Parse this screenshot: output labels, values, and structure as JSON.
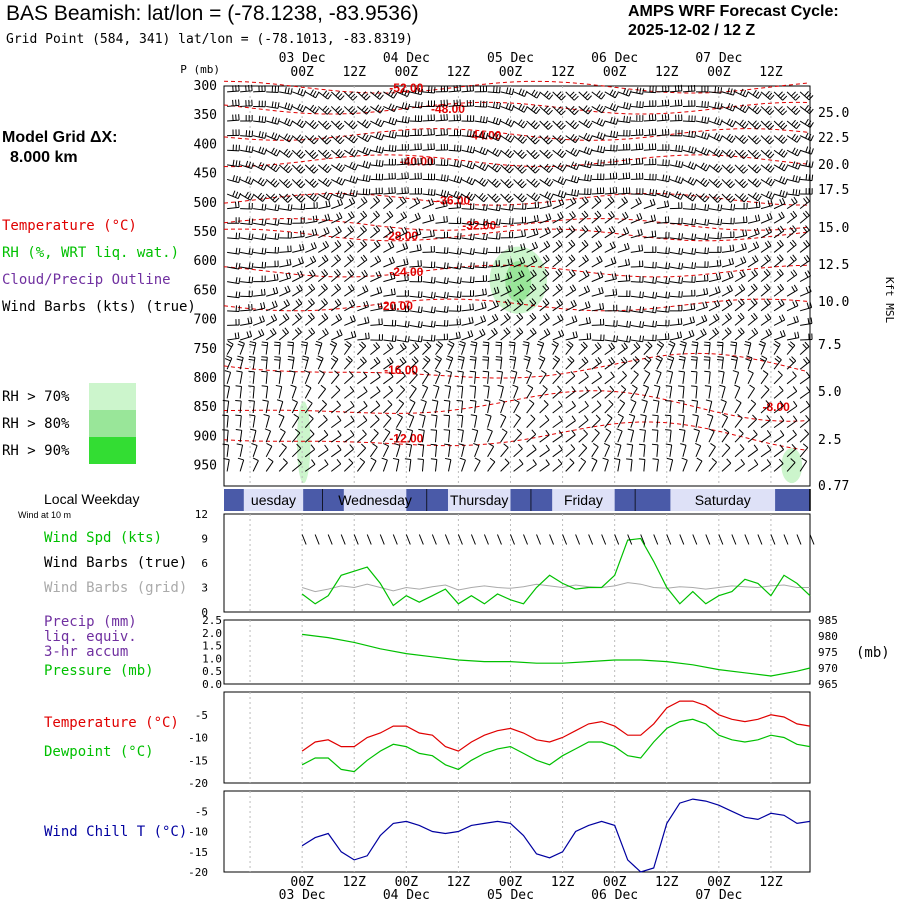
{
  "header": {
    "title": "BAS Beamish:  lat/lon = (-78.1238, -83.9536)",
    "subtitle": "Grid Point (584, 341) lat/lon = (-78.1013, -83.8319)",
    "cycle_label": "AMPS WRF Forecast Cycle:",
    "cycle_value": "2025-12-02 / 12  Z"
  },
  "left_labels": {
    "grid_label": "Model Grid ΔX:",
    "grid_value": "8.000 km",
    "temperature": "Temperature (°C)",
    "rh": "RH (%, WRT liq. wat.)",
    "cloud": "Cloud/Precip Outline",
    "barbs": "Wind Barbs (kts) (true)",
    "rh70": "RH > 70%",
    "rh80": "RH > 80%",
    "rh90": "RH > 90%",
    "local_weekday": "Local Weekday",
    "wind10m": "Wind at 10 m",
    "wind_spd": "Wind Spd (kts)",
    "wind_barbs_true": "Wind Barbs (true)",
    "wind_barbs_grid": "Wind Barbs (grid)",
    "precip": "Precip (mm)",
    "liq_equiv": "liq. equiv.",
    "accum": "3-hr accum",
    "pressure": "Pressure (mb)",
    "temp2": "Temperature (°C)",
    "dewpoint": "Dewpoint (°C)",
    "windchill": "Wind Chill T (°C)",
    "p_axis_label": "P (mb)",
    "kft_label": "Kft MSL",
    "mb_label": "(mb)"
  },
  "colors": {
    "temperature": "#e00000",
    "green": "#00c000",
    "purple": "#7030a0",
    "gray": "#aaaaaa",
    "blue": "#0000a0",
    "rh70": "#ccf5cc",
    "rh80": "#99e699",
    "rh90": "#33dd33"
  },
  "time_axis": {
    "ticks": [
      "00Z",
      "12Z",
      "00Z",
      "12Z",
      "00Z",
      "12Z",
      "00Z",
      "12Z",
      "00Z",
      "12Z"
    ],
    "dates": [
      "03 Dec",
      "04 Dec",
      "05 Dec",
      "06 Dec",
      "07 Dec"
    ],
    "weekdays": [
      "uesday",
      "Wednesday",
      "Thursday",
      "Friday",
      "Saturday"
    ]
  },
  "chart_data": [
    {
      "type": "cross-section",
      "name": "upper-air",
      "y_pressure_ticks": [
        300,
        350,
        400,
        450,
        500,
        550,
        600,
        650,
        700,
        750,
        800,
        850,
        900,
        950
      ],
      "y_height_ticks": [
        "25.0",
        "22.5",
        "20.0",
        "17.5",
        "15.0",
        "12.5",
        "10.0",
        "7.5",
        "5.0",
        "2.5",
        "0.77"
      ],
      "isotherm_labels": [
        {
          "label": "-52.00",
          "p": 302,
          "t": 1.0
        },
        {
          "label": "-48.00",
          "p": 338,
          "t": 1.4
        },
        {
          "label": "-44.00",
          "p": 383,
          "t": 1.75
        },
        {
          "label": "-40.00",
          "p": 428,
          "t": 1.1
        },
        {
          "label": "-36.00",
          "p": 494,
          "t": 1.45
        },
        {
          "label": "-32.00",
          "p": 537,
          "t": 1.7
        },
        {
          "label": "-28.00",
          "p": 555,
          "t": 0.95
        },
        {
          "label": "-24.00",
          "p": 617,
          "t": 1.0
        },
        {
          "label": "-20.00",
          "p": 675,
          "t": 0.9
        },
        {
          "label": "-16.00",
          "p": 785,
          "t": 0.95
        },
        {
          "label": "-12.00",
          "p": 902,
          "t": 1.0
        },
        {
          "label": "-8.00",
          "p": 848,
          "t": 4.55
        }
      ],
      "isotherm_levels": [
        -52,
        -48,
        -44,
        -40,
        -36,
        -32,
        -28,
        -24,
        -20,
        -16,
        -12,
        -8
      ],
      "rh_areas": [
        {
          "level": "rh70",
          "t0": -0.05,
          "t1": 0.08,
          "p0": 840,
          "p1": 980
        },
        {
          "level": "rh70",
          "t0": 1.8,
          "t1": 2.35,
          "p0": 575,
          "p1": 690
        },
        {
          "level": "rh80",
          "t0": 1.95,
          "t1": 2.2,
          "p0": 600,
          "p1": 670
        },
        {
          "level": "rh70",
          "t0": 4.6,
          "t1": 4.8,
          "p0": 920,
          "p1": 980
        }
      ]
    },
    {
      "type": "line",
      "name": "wind",
      "ylim": [
        0,
        12
      ],
      "yticks": [
        0,
        3,
        6,
        9,
        12
      ],
      "t_days": [
        0,
        0.125,
        0.25,
        0.375,
        0.5,
        0.625,
        0.75,
        0.875,
        1.0,
        1.125,
        1.25,
        1.375,
        1.5,
        1.625,
        1.75,
        1.875,
        2.0,
        2.125,
        2.25,
        2.375,
        2.5,
        2.625,
        2.75,
        2.875,
        3.0,
        3.125,
        3.25,
        3.375,
        3.5,
        3.625,
        3.75,
        3.875,
        4.0,
        4.125,
        4.25,
        4.375,
        4.5,
        4.625,
        4.75,
        4.875
      ],
      "wind_speed": [
        2.2,
        1.0,
        2.0,
        4.5,
        5.0,
        5.5,
        3.5,
        0.8,
        2.0,
        1.2,
        2.0,
        2.8,
        1.0,
        2.0,
        1.0,
        2.2,
        1.5,
        1.0,
        3.0,
        4.5,
        3.5,
        2.8,
        3.0,
        3.0,
        4.5,
        8.8,
        9.0,
        6.2,
        3.0,
        1.0,
        2.5,
        1.0,
        2.0,
        2.5,
        4.0,
        3.5,
        2.0,
        4.5,
        3.5,
        2.0
      ],
      "grid_barb_line": [
        3,
        2.5,
        2.8,
        3.2,
        3.0,
        3.4,
        3.0,
        2.6,
        3.0,
        2.8,
        3.1,
        3.3,
        2.7,
        3.0,
        3.2,
        3.0,
        2.9,
        3.1,
        3.4,
        3.2,
        3.0,
        3.3,
        3.1,
        3.0,
        3.2,
        3.6,
        3.4,
        3.0,
        2.9,
        3.1,
        3.0,
        2.8,
        3.0,
        3.2,
        3.1,
        3.0,
        3.2,
        3.3,
        3.0,
        3.0
      ]
    },
    {
      "type": "line",
      "name": "precip-pressure",
      "precip_ticks": [
        "0.0",
        "0.5",
        "1.0",
        "1.5",
        "2.0",
        "2.5"
      ],
      "pressure_ticks": [
        965,
        970,
        975,
        980,
        985
      ],
      "pressure_ylim": [
        965,
        985
      ],
      "t_days": [
        0,
        0.25,
        0.5,
        0.75,
        1.0,
        1.25,
        1.5,
        1.75,
        2.0,
        2.25,
        2.5,
        2.75,
        3.0,
        3.25,
        3.5,
        3.75,
        4.0,
        4.25,
        4.5,
        4.75,
        4.875
      ],
      "pressure": [
        980.5,
        979.5,
        978.0,
        976.0,
        974.5,
        973.5,
        972.5,
        972.0,
        972.0,
        971.5,
        971.5,
        972.0,
        972.5,
        972.5,
        972.0,
        971.0,
        969.5,
        968.5,
        967.5,
        969.0,
        970.0
      ]
    },
    {
      "type": "line",
      "name": "temperature-dewpoint",
      "ylim": [
        -20,
        0
      ],
      "yticks": [
        -20,
        -15,
        -10,
        -5
      ],
      "t_days": [
        0,
        0.125,
        0.25,
        0.375,
        0.5,
        0.625,
        0.75,
        0.875,
        1.0,
        1.125,
        1.25,
        1.375,
        1.5,
        1.625,
        1.75,
        1.875,
        2.0,
        2.125,
        2.25,
        2.375,
        2.5,
        2.625,
        2.75,
        2.875,
        3.0,
        3.125,
        3.25,
        3.375,
        3.5,
        3.625,
        3.75,
        3.875,
        4.0,
        4.125,
        4.25,
        4.375,
        4.5,
        4.625,
        4.75,
        4.875
      ],
      "temperature": [
        -13.0,
        -11.0,
        -10.5,
        -12.0,
        -12.0,
        -10.0,
        -9.0,
        -7.5,
        -7.5,
        -9.0,
        -9.5,
        -12.0,
        -13.0,
        -11.0,
        -9.5,
        -8.5,
        -8.0,
        -9.0,
        -10.5,
        -11.0,
        -10.0,
        -8.5,
        -7.0,
        -6.5,
        -7.5,
        -9.5,
        -9.5,
        -7.0,
        -3.5,
        -2.0,
        -2.0,
        -3.0,
        -5.0,
        -6.0,
        -6.5,
        -6.0,
        -5.0,
        -5.5,
        -7.0,
        -7.5
      ],
      "dewpoint": [
        -16.0,
        -14.5,
        -14.5,
        -17.0,
        -17.5,
        -15.0,
        -13.0,
        -11.5,
        -12.0,
        -13.5,
        -14.0,
        -16.0,
        -17.0,
        -15.0,
        -13.5,
        -12.5,
        -12.0,
        -13.5,
        -15.0,
        -16.0,
        -14.0,
        -12.5,
        -11.0,
        -11.0,
        -12.0,
        -14.0,
        -14.5,
        -11.0,
        -8.0,
        -6.5,
        -6.0,
        -7.0,
        -9.5,
        -10.5,
        -11.0,
        -10.5,
        -9.5,
        -10.0,
        -11.5,
        -12.0
      ]
    },
    {
      "type": "line",
      "name": "windchill",
      "ylim": [
        -20,
        0
      ],
      "yticks": [
        -20,
        -15,
        -10,
        -5
      ],
      "t_days": [
        0,
        0.125,
        0.25,
        0.375,
        0.5,
        0.625,
        0.75,
        0.875,
        1.0,
        1.125,
        1.25,
        1.375,
        1.5,
        1.625,
        1.75,
        1.875,
        2.0,
        2.125,
        2.25,
        2.375,
        2.5,
        2.625,
        2.75,
        2.875,
        3.0,
        3.125,
        3.25,
        3.375,
        3.5,
        3.625,
        3.75,
        3.875,
        4.0,
        4.125,
        4.25,
        4.375,
        4.5,
        4.625,
        4.75,
        4.875
      ],
      "windchill": [
        -13.5,
        -11.5,
        -10.5,
        -15.0,
        -17.0,
        -16.0,
        -11.0,
        -8.0,
        -7.5,
        -8.5,
        -10.0,
        -10.5,
        -10.0,
        -8.5,
        -8.0,
        -7.5,
        -8.0,
        -11.0,
        -15.5,
        -16.5,
        -15.0,
        -10.0,
        -8.5,
        -7.5,
        -8.5,
        -17.0,
        -20.0,
        -19.0,
        -8.0,
        -3.0,
        -2.0,
        -2.5,
        -3.5,
        -5.0,
        -6.5,
        -7.0,
        -5.5,
        -6.0,
        -8.0,
        -7.5
      ]
    }
  ]
}
